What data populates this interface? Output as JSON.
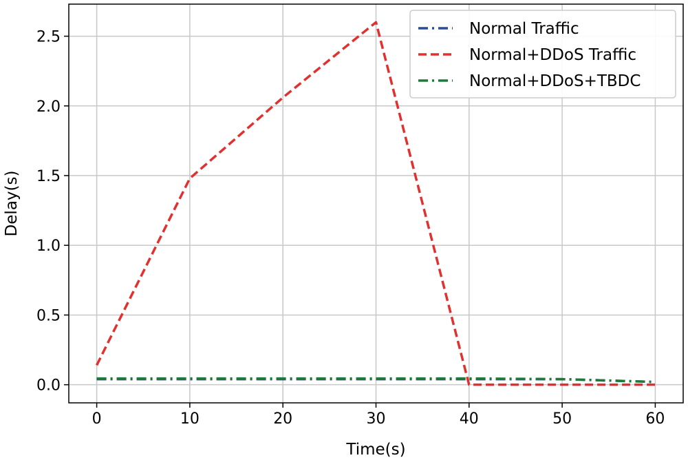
{
  "chart_data": {
    "type": "line",
    "title": "",
    "xlabel": "Time(s)",
    "ylabel": "Delay(s)",
    "xlim": [
      -3,
      63
    ],
    "ylim": [
      -0.13,
      2.73
    ],
    "xticks": [
      0,
      10,
      20,
      30,
      40,
      50,
      60
    ],
    "xtick_labels": [
      "0",
      "10",
      "20",
      "30",
      "40",
      "50",
      "60"
    ],
    "yticks": [
      0.0,
      0.5,
      1.0,
      1.5,
      2.0,
      2.5
    ],
    "ytick_labels": [
      "0.0",
      "0.5",
      "1.0",
      "1.5",
      "2.0",
      "2.5"
    ],
    "grid": true,
    "legend_position": "top-right",
    "x": [
      0,
      10,
      20,
      30,
      40,
      50,
      60
    ],
    "series": [
      {
        "name": "Normal Traffic",
        "color": "#2b4a9c",
        "linestyle": "dashdot",
        "values": [
          0.04,
          0.04,
          0.04,
          0.04,
          0.04,
          0.04,
          0.02
        ]
      },
      {
        "name": "Normal+DDoS Traffic",
        "color": "#e03030",
        "linestyle": "dashed",
        "values": [
          0.14,
          1.48,
          2.06,
          2.6,
          0.0,
          0.0,
          0.0
        ]
      },
      {
        "name": "Normal+DDoS+TBDC",
        "color": "#1f7a3a",
        "linestyle": "dashdot",
        "values": [
          0.045,
          0.045,
          0.045,
          0.045,
          0.045,
          0.04,
          0.02
        ]
      }
    ]
  }
}
